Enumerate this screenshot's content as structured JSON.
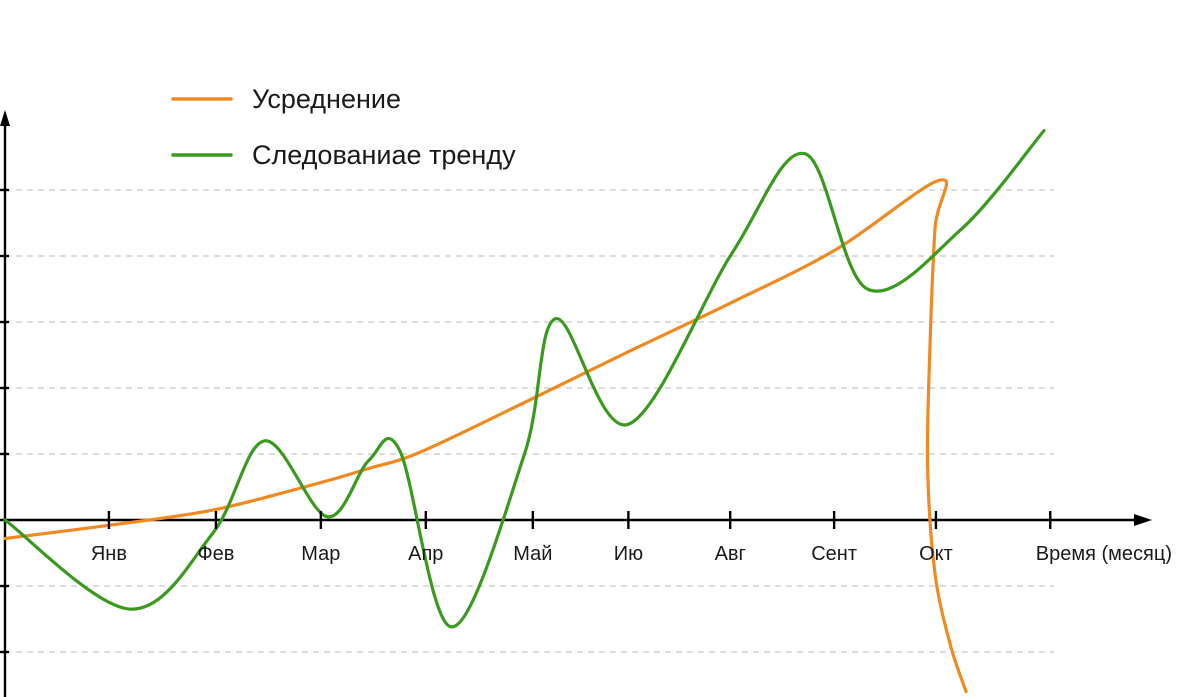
{
  "chart_data": {
    "type": "line",
    "title": "",
    "xlabel": "Время (месяц)",
    "ylabel": "",
    "categories": [
      "Янв",
      "Фев",
      "Мар",
      "Апр",
      "Май",
      "Ию",
      "Авг",
      "Сент",
      "Окт"
    ],
    "xlim": [
      -1,
      10.2
    ],
    "ylim": [
      -2.6,
      6.2
    ],
    "gridlines_y": [
      -2,
      -1,
      1,
      2,
      3,
      4,
      5
    ],
    "grid": true,
    "legend_position": "top-left",
    "series": [
      {
        "name": "Усреднение",
        "color": "#ef8a23",
        "points": [
          [
            -1,
            -0.28
          ],
          [
            0,
            -0.08
          ],
          [
            1,
            0.15
          ],
          [
            2,
            0.55
          ],
          [
            2.5,
            0.78
          ],
          [
            3,
            1.03
          ],
          [
            4,
            1.78
          ],
          [
            5,
            2.55
          ],
          [
            6,
            3.3
          ],
          [
            7,
            4.1
          ],
          [
            8,
            5.15
          ],
          [
            7.95,
            4.4
          ],
          [
            7.9,
            2.5
          ],
          [
            7.88,
            0.8
          ],
          [
            7.95,
            -0.8
          ],
          [
            8.1,
            -1.9
          ],
          [
            8.25,
            -2.6
          ]
        ]
      },
      {
        "name": "Следованиаe тренду",
        "color": "#3a9a1e",
        "points": [
          [
            -1,
            0.0
          ],
          [
            0.2,
            -1.35
          ],
          [
            1,
            -0.2
          ],
          [
            1.5,
            1.2
          ],
          [
            2.1,
            0.05
          ],
          [
            2.5,
            0.9
          ],
          [
            2.8,
            1.05
          ],
          [
            3.3,
            -1.62
          ],
          [
            4,
            1.0
          ],
          [
            4.3,
            3.05
          ],
          [
            5,
            1.45
          ],
          [
            6,
            4.05
          ],
          [
            6.7,
            5.55
          ],
          [
            7.3,
            3.5
          ],
          [
            8.2,
            4.4
          ],
          [
            9,
            5.9
          ]
        ]
      }
    ]
  }
}
